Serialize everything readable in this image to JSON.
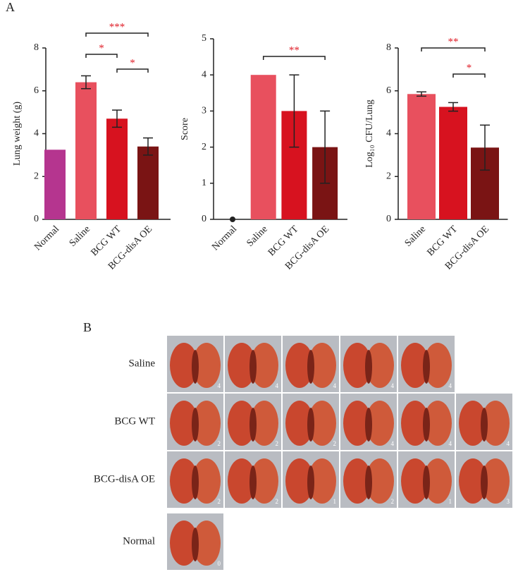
{
  "chart_data": [
    {
      "type": "bar",
      "ylabel": "Lung weight (g)",
      "categories": [
        "Normal",
        "Saline",
        "BCG WT",
        "BCG-disA OE"
      ],
      "values": [
        3.25,
        6.4,
        4.7,
        3.4
      ],
      "errors": [
        null,
        0.3,
        0.4,
        0.4
      ],
      "colors": [
        "#b5358f",
        "#e8505e",
        "#d7121f",
        "#7a1414"
      ],
      "ylim": [
        0,
        8
      ],
      "yticks": [
        0,
        2,
        4,
        6,
        8
      ],
      "annotations": [
        {
          "text": "*",
          "between": [
            "Saline",
            "BCG WT"
          ]
        },
        {
          "text": "*",
          "between": [
            "BCG WT",
            "BCG-disA OE"
          ]
        },
        {
          "text": "***",
          "between": [
            "Saline",
            "BCG-disA OE"
          ]
        }
      ]
    },
    {
      "type": "bar",
      "ylabel": "Score",
      "categories": [
        "Normal",
        "Saline",
        "BCG WT",
        "BCG-disA OE"
      ],
      "values": [
        0,
        4,
        3,
        2
      ],
      "errors": [
        null,
        null,
        1,
        1
      ],
      "colors": [
        "#222222",
        "#e8505e",
        "#d7121f",
        "#7a1414"
      ],
      "ylim": [
        0,
        5
      ],
      "yticks": [
        0,
        1,
        2,
        3,
        4,
        5
      ],
      "annotations": [
        {
          "text": "**",
          "between": [
            "Saline",
            "BCG-disA OE"
          ]
        }
      ]
    },
    {
      "type": "bar",
      "ylabel": "Log₁₀ CFU/Lung",
      "categories": [
        "Saline",
        "BCG WT",
        "BCG-disA OE"
      ],
      "values": [
        5.85,
        5.25,
        3.35
      ],
      "errors": [
        0.1,
        0.2,
        1.05
      ],
      "colors": [
        "#e8505e",
        "#d7121f",
        "#7a1414"
      ],
      "ylim": [
        0,
        8
      ],
      "yticks": [
        0,
        2,
        4,
        6,
        8
      ],
      "annotations": [
        {
          "text": "**",
          "between": [
            "Saline",
            "BCG-disA OE"
          ]
        },
        {
          "text": "*",
          "between": [
            "BCG WT",
            "BCG-disA OE"
          ]
        }
      ]
    }
  ],
  "panel_a": {
    "label": "A"
  },
  "panel_b": {
    "label": "B",
    "rows": [
      {
        "label": "Saline",
        "scores": [
          4,
          4,
          4,
          4,
          4
        ]
      },
      {
        "label": "BCG WT",
        "scores": [
          2,
          2,
          2,
          4,
          4,
          4
        ]
      },
      {
        "label": "BCG-disA OE",
        "scores": [
          2,
          2,
          1,
          2,
          1,
          3
        ]
      },
      {
        "label": "Normal",
        "scores": [
          0
        ]
      }
    ]
  }
}
